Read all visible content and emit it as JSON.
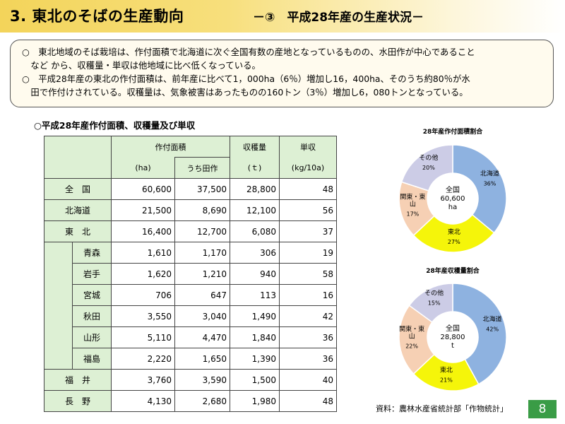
{
  "title": {
    "main": "3. 東北のそばの生産動向",
    "sub": "－③　平成28年産の生産状況－"
  },
  "summary": {
    "lines": [
      "○　東北地域のそば栽培は、作付面積で北海道に次ぐ全国有数の産地となっているものの、水田作が中心であること",
      "　など から、収穫量・単収は他地域に比べ低くなっている。",
      "○　平成28年産の東北の作付面積は、前年産に比べて1，000ha（6％）増加し16，400ha、そのうち約80％が水",
      "　田で作付けされている。収穫量は、気象被害はあったものの160トン（3％）増加し6，080トンとなっている。"
    ]
  },
  "table": {
    "heading": "○平成28年産作付面積、収穫量及び単収",
    "headers": {
      "area": "作付面積",
      "harvest": "収穫量",
      "yield": "単収",
      "area_unit": "(ha)",
      "paddy": "うち田作",
      "harvest_unit": "(ｔ)",
      "yield_unit": "(kg/10a)"
    },
    "rows": [
      {
        "label": "全　国",
        "area": "60,600",
        "paddy": "37,500",
        "harvest": "28,800",
        "yield": "48"
      },
      {
        "label": "北海道",
        "area": "21,500",
        "paddy": "8,690",
        "harvest": "12,100",
        "yield": "56"
      },
      {
        "label": "東　北",
        "area": "16,400",
        "paddy": "12,700",
        "harvest": "6,080",
        "yield": "37"
      },
      {
        "label": "青森",
        "area": "1,610",
        "paddy": "1,170",
        "harvest": "306",
        "yield": "19"
      },
      {
        "label": "岩手",
        "area": "1,620",
        "paddy": "1,210",
        "harvest": "940",
        "yield": "58"
      },
      {
        "label": "宮城",
        "area": "706",
        "paddy": "647",
        "harvest": "113",
        "yield": "16"
      },
      {
        "label": "秋田",
        "area": "3,550",
        "paddy": "3,040",
        "harvest": "1,490",
        "yield": "42"
      },
      {
        "label": "山形",
        "area": "5,110",
        "paddy": "4,470",
        "harvest": "1,840",
        "yield": "36"
      },
      {
        "label": "福島",
        "area": "2,220",
        "paddy": "1,650",
        "harvest": "1,390",
        "yield": "36"
      },
      {
        "label": "福　井",
        "area": "3,760",
        "paddy": "3,590",
        "harvest": "1,500",
        "yield": "40"
      },
      {
        "label": "長　野",
        "area": "4,130",
        "paddy": "2,680",
        "harvest": "1,980",
        "yield": "48"
      }
    ]
  },
  "chart_data": [
    {
      "type": "pie",
      "title": "28年産作付面積割合",
      "center_label": [
        "全国",
        "60,600",
        "ha"
      ],
      "slices": [
        {
          "name": "北海道",
          "value": 36,
          "label": "36%",
          "color": "#8eb2e0"
        },
        {
          "name": "東北",
          "value": 27,
          "label": "27%",
          "color": "#f5f50a"
        },
        {
          "name": "関東・東山",
          "value": 17,
          "label": "17%",
          "color": "#f6d0b4"
        },
        {
          "name": "その他",
          "value": 20,
          "label": "20%",
          "color": "#cccce6"
        }
      ]
    },
    {
      "type": "pie",
      "title": "28年産収穫量割合",
      "center_label": [
        "全国",
        "28,800",
        "t"
      ],
      "slices": [
        {
          "name": "北海道",
          "value": 42,
          "label": "42%",
          "color": "#8eb2e0"
        },
        {
          "name": "東北",
          "value": 21,
          "label": "21%",
          "color": "#f5f50a"
        },
        {
          "name": "関東・東山",
          "value": 22,
          "label": "22%",
          "color": "#f6d0b4"
        },
        {
          "name": "その他",
          "value": 15,
          "label": "15%",
          "color": "#cccce6"
        }
      ]
    }
  ],
  "source": "資料：農林水産省統計部「作物統計」",
  "page_number": "8"
}
